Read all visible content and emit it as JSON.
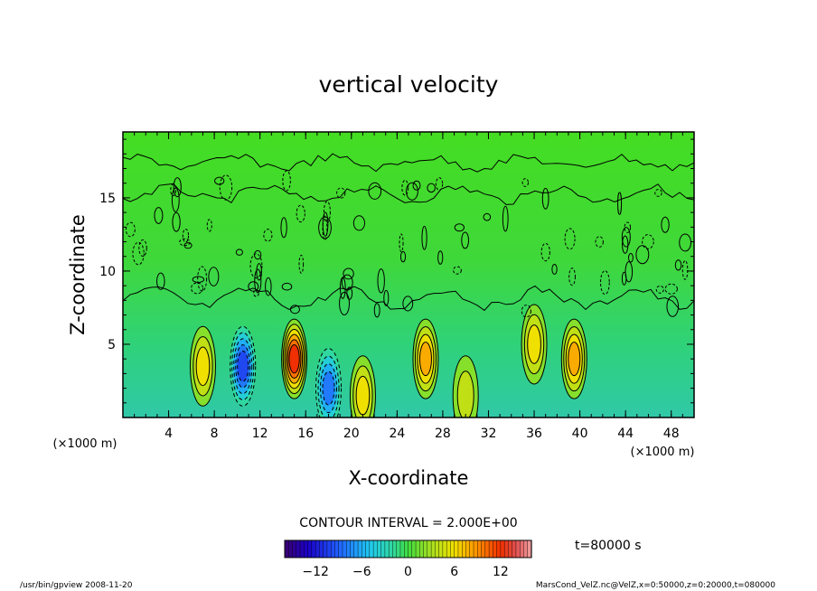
{
  "chart_data": {
    "type": "heatmap",
    "title": "vertical velocity",
    "xlabel": "X-coordinate",
    "ylabel": "Z-coordinate",
    "x_unit": "(×1000 m)",
    "x_unit_right": "(×1000 m)",
    "x_ticks": [
      4,
      8,
      12,
      16,
      20,
      24,
      28,
      32,
      36,
      40,
      44,
      48
    ],
    "x_ticklabels": [
      "4",
      "8",
      "12",
      "16",
      "20",
      "24",
      "28",
      "32",
      "36",
      "40",
      "44",
      "48"
    ],
    "y_ticks": [
      5,
      10,
      15
    ],
    "y_ticklabels": [
      "5",
      "10",
      "15"
    ],
    "xlim": [
      0,
      50
    ],
    "ylim": [
      0,
      19.5
    ],
    "contour_interval_text": "CONTOUR INTERVAL = 2.000E+00",
    "time_text": "t=80000 s",
    "colorbar": {
      "ticks": [
        -12,
        -6,
        0,
        6,
        12
      ],
      "ticklabels": [
        "−12",
        "−6",
        "0",
        "6",
        "12"
      ],
      "range": [
        -16,
        16
      ]
    },
    "features": [
      {
        "x": 7,
        "z": 3.5,
        "w": 6,
        "kind": "updraft"
      },
      {
        "x": 10.5,
        "z": 3.5,
        "w": -10,
        "kind": "downdraft"
      },
      {
        "x": 15,
        "z": 4,
        "w": 12,
        "kind": "updraft"
      },
      {
        "x": 18,
        "z": 2,
        "w": -8,
        "kind": "downdraft"
      },
      {
        "x": 21,
        "z": 1.5,
        "w": 6,
        "kind": "updraft"
      },
      {
        "x": 26.5,
        "z": 4,
        "w": 8,
        "kind": "updraft"
      },
      {
        "x": 30,
        "z": 1.5,
        "w": 4,
        "kind": "updraft"
      },
      {
        "x": 36,
        "z": 5,
        "w": 6,
        "kind": "updraft"
      },
      {
        "x": 39.5,
        "z": 4,
        "w": 8,
        "kind": "updraft"
      }
    ]
  },
  "footer": {
    "left_text": "/usr/bin/gpview   2008-11-20",
    "right_text": "MarsCond_VelZ.nc@VelZ,x=0:50000,z=0:20000,t=080000"
  }
}
